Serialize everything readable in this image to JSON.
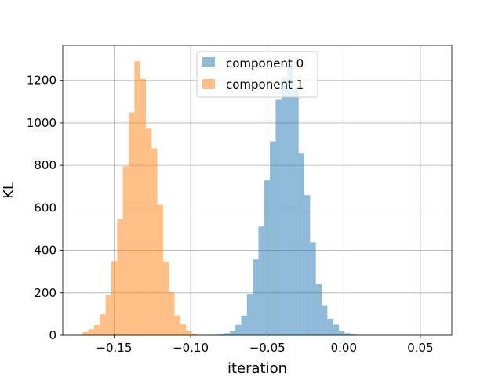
{
  "chart_data": {
    "type": "bar",
    "subtype": "histogram",
    "xlabel": "iteration",
    "ylabel": "KL",
    "xlim": [
      -0.1835,
      0.0705
    ],
    "ylim": [
      0,
      1365
    ],
    "xticks": [
      -0.15,
      -0.1,
      -0.05,
      0.0,
      0.05
    ],
    "xtick_labels": [
      "−0.15",
      "−0.10",
      "−0.05",
      "0.00",
      "0.05"
    ],
    "yticks": [
      0,
      200,
      400,
      600,
      800,
      1000,
      1200
    ],
    "ytick_labels": [
      "0",
      "200",
      "400",
      "600",
      "800",
      "1000",
      "1200"
    ],
    "grid": true,
    "legend_position": "upper-center",
    "series": [
      {
        "name": "component 0",
        "color": "#1f77b4",
        "alpha": 0.5,
        "bin_start": -0.0895,
        "bin_width": 0.00375,
        "counts": [
          1,
          2,
          5,
          10,
          20,
          49,
          92,
          195,
          357,
          512,
          730,
          913,
          1109,
          1217,
          1296,
          1162,
          859,
          660,
          438,
          241,
          142,
          78,
          50,
          19,
          10,
          3
        ]
      },
      {
        "name": "component 1",
        "color": "#ff7f0e",
        "alpha": 0.5,
        "bin_start": -0.1705,
        "bin_width": 0.00375,
        "counts": [
          15,
          29,
          48,
          99,
          192,
          349,
          547,
          796,
          1050,
          1291,
          1208,
          973,
          880,
          614,
          347,
          203,
          94,
          51,
          21,
          7
        ]
      }
    ]
  }
}
